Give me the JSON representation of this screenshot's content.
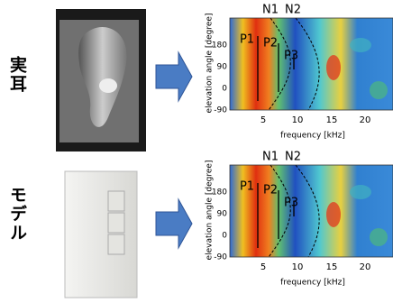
{
  "rows": [
    {
      "label": "実耳",
      "panel": {
        "notch_labels": [
          "N1",
          "N2"
        ],
        "peak_labels": [
          "P1",
          "P2",
          "P3"
        ],
        "y_axis_label": "elevation angle [degree]",
        "x_axis_label": "frequency [kHz]",
        "y_ticks": [
          180,
          90,
          0,
          -90
        ],
        "x_ticks": [
          5,
          10,
          15,
          20
        ]
      }
    },
    {
      "label": "モデル",
      "panel": {
        "notch_labels": [
          "N1",
          "N2"
        ],
        "peak_labels": [
          "P1",
          "P2",
          "P3"
        ],
        "y_axis_label": "elevation angle [degree]",
        "x_axis_label": "frequency [kHz]",
        "y_ticks": [
          180,
          90,
          0,
          -90
        ],
        "x_ticks": [
          5,
          10,
          15,
          20
        ]
      }
    }
  ]
}
